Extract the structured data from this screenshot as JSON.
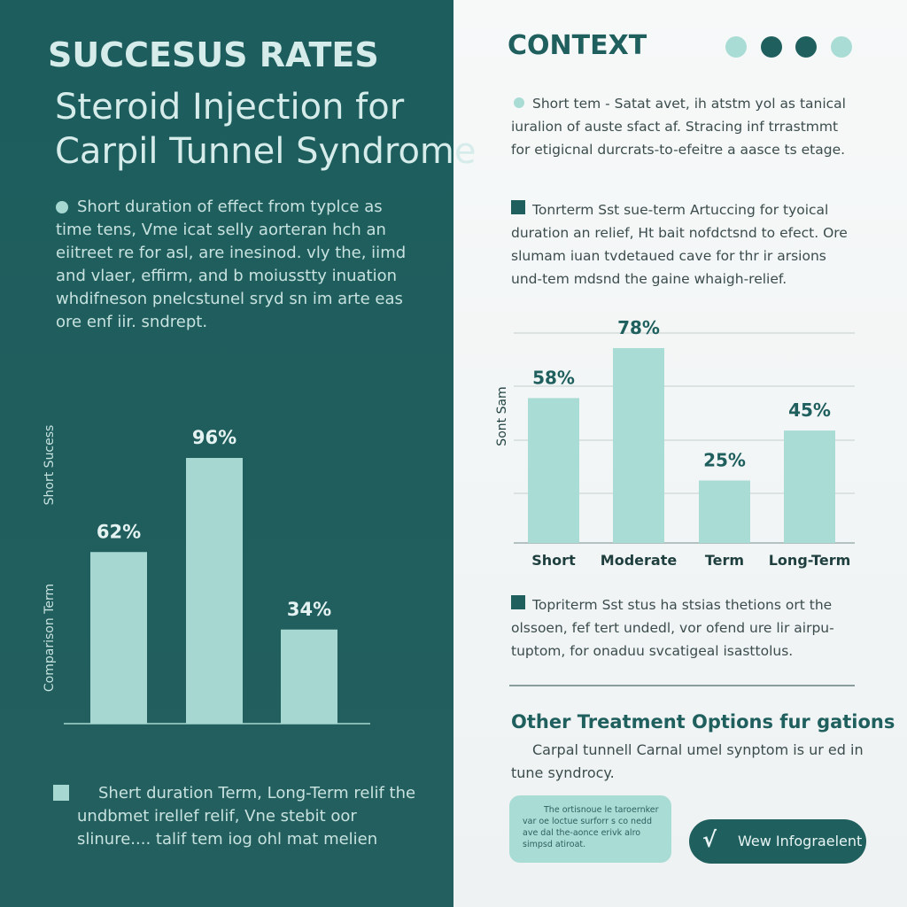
{
  "left": {
    "title": "SUCCESUS RATES",
    "subtitle": [
      "Steroid Injection for",
      "Carpil Tunnel Syndrome"
    ],
    "intro": [
      "Short duration of effect from typlce as",
      "time tens, Vme icat selly aorteran hch an",
      "eiitreet re for asl, are inesinod. vly the, iimd",
      "and vlaer, effirm, and b moiusstty inuation",
      "whdifneson pnelcstunel sryd sn im arte eas",
      "ore enf iir. sndrept."
    ],
    "legend": [
      "Shert duration Term, Long-Term relif the",
      "undbmet irellef relif, Vne stebit oor",
      "slinure.... talif tem iog ohl mat melien"
    ]
  },
  "right": {
    "heading": "CONTEXT",
    "para1": [
      "Short tem - Satat avet, ih atstm yol as tanical",
      "iuralion of auste sfact af. Stracing inf trrastmmt",
      "for etigicnal durcrats-to-efeitre a aasce ts etage."
    ],
    "para2": [
      "Tonrterm Sst sue-term Artuccing for tyoical",
      "duration an relief, Ht bait nofdctsnd to efect. Ore",
      "slumam iuan tvdetaued cave for thr ir arsions",
      "und-tem mdsnd the gaine whaigh-relief."
    ],
    "para3": [
      "Topriterm Sst stus ha stsias thetions ort the",
      "olssoen, fef tert undedl, vor ofend ure lir airpu-",
      "tuptom, for onaduu svcatigeal isasttolus."
    ],
    "other_title": "Other Treatment Options fur gations",
    "other_text": [
      "Carpal tunnell Carnal umel synptom is ur ed in",
      "tune syndrocy."
    ],
    "note": [
      "The ortisnoue le taroernker",
      "var oe loctue surforr s co nedd",
      "ave dal the-aonce erivk alro",
      "simpsd atiroat."
    ],
    "button_icon": "√",
    "button": "Wew Infograelent"
  },
  "chart_data": [
    {
      "type": "bar",
      "ylabel": [
        "Short Sucess",
        "Comparison Term"
      ],
      "categories": [
        null,
        null,
        null
      ],
      "values": [
        62,
        96,
        34
      ],
      "value_labels": [
        "62%",
        "96%",
        "34%"
      ],
      "color": "#a6d7d1"
    },
    {
      "type": "bar",
      "ylabel": "Sont Sam",
      "categories": [
        "Short",
        "Moderate",
        "Term",
        "Long-Term"
      ],
      "values": [
        58,
        78,
        25,
        45
      ],
      "value_labels": [
        "58%",
        "78%",
        "25%",
        "45%"
      ],
      "color": "#a9dcd5",
      "grid": true
    }
  ]
}
